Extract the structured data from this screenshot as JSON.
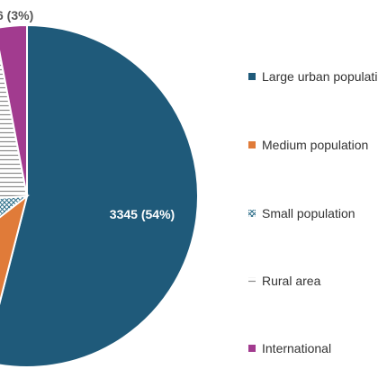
{
  "chart_data": {
    "type": "pie",
    "categories": [
      "Large urban population",
      "Medium population",
      "Small population",
      "Rural area",
      "International"
    ],
    "series": [
      {
        "values": [
          3345,
          null,
          null,
          null,
          null
        ]
      }
    ],
    "data_labels": [
      "3345 (54%)",
      "",
      "",
      "",
      "6 (3%)"
    ],
    "percentages": [
      54,
      null,
      null,
      null,
      3
    ],
    "colors": [
      "#1f5a7a",
      "#e07b39",
      "#2e6f8a",
      "#8a8a8a",
      "#a23b8f"
    ],
    "fills": [
      "solid",
      "solid",
      "crosshatch",
      "horizontal-lines",
      "solid"
    ],
    "legend_position": "right",
    "legend_labels_visible": [
      "Large urban popu",
      "Medium populati",
      "Small population",
      "Rural area",
      "International"
    ]
  }
}
